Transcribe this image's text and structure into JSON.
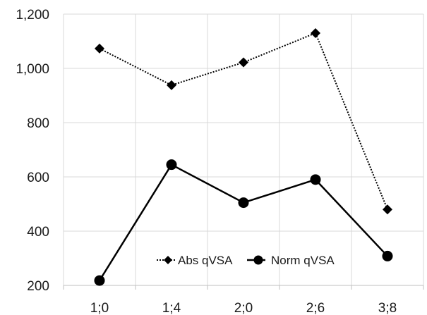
{
  "chart_data": {
    "type": "line",
    "title": "",
    "xlabel": "",
    "ylabel": "",
    "categories": [
      "1;0",
      "1;4",
      "2;0",
      "2;6",
      "3;8"
    ],
    "ylim": [
      200,
      1200
    ],
    "ytick_values": [
      200,
      400,
      600,
      800,
      1000,
      1200
    ],
    "ytick_labels": [
      "200",
      "400",
      "600",
      "800",
      "1,000",
      "1,200"
    ],
    "grid": true,
    "legend_position": "bottom-inside",
    "series": [
      {
        "name": "Abs qVSA",
        "values": [
          1073,
          938,
          1022,
          1130,
          480
        ],
        "line_style": "dotted",
        "marker": "diamond",
        "color": "#000000"
      },
      {
        "name": "Norm qVSA",
        "values": [
          218,
          645,
          505,
          590,
          308
        ],
        "line_style": "solid",
        "marker": "circle",
        "color": "#000000"
      }
    ]
  }
}
